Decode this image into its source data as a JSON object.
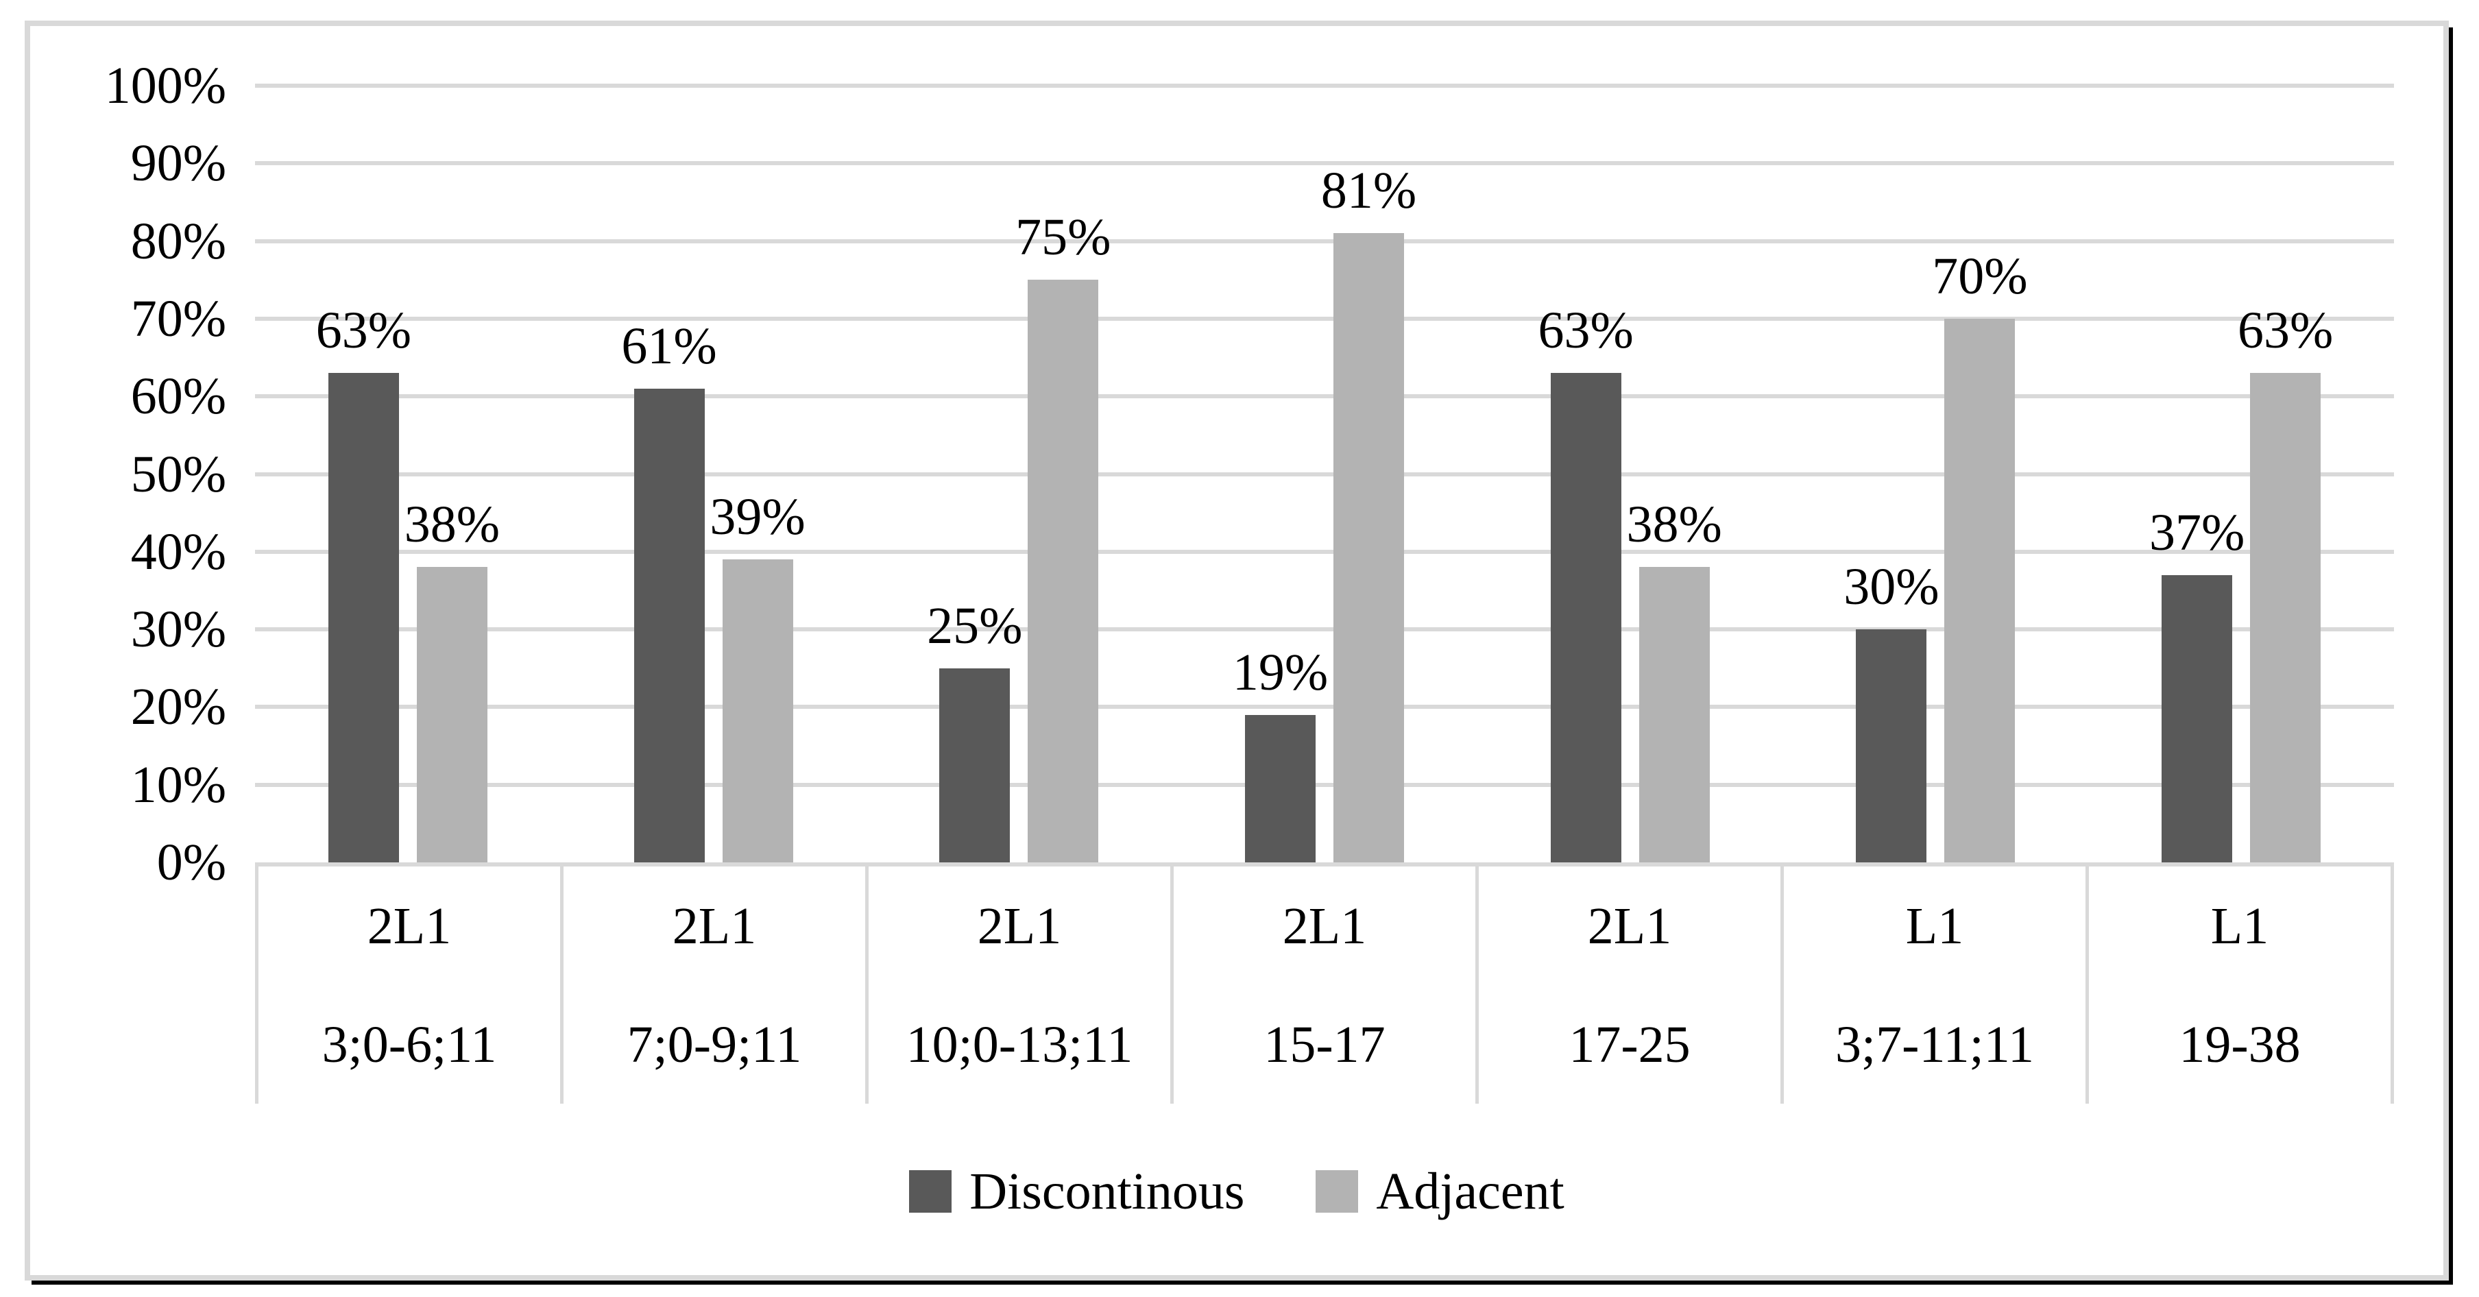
{
  "figure": {
    "background": "#ffffff",
    "box_border_color": "#d9d9d9",
    "shadow_color": "#000000",
    "text_color": "#000000"
  },
  "chart_data": {
    "type": "bar",
    "title": "",
    "xlabel": "",
    "ylabel": "",
    "categories": [
      {
        "group": "2L1",
        "age": "3;0-6;11"
      },
      {
        "group": "2L1",
        "age": "7;0-9;11"
      },
      {
        "group": "2L1",
        "age": "10;0-13;11"
      },
      {
        "group": "2L1",
        "age": "15-17"
      },
      {
        "group": "2L1",
        "age": "17-25"
      },
      {
        "group": "L1",
        "age": "3;7-11;11"
      },
      {
        "group": "L1",
        "age": "19-38"
      }
    ],
    "series": [
      {
        "name": "Discontinous",
        "color": "#595959",
        "values": [
          63,
          61,
          25,
          19,
          63,
          30,
          37
        ],
        "labels": [
          "63%",
          "61%",
          "25%",
          "19%",
          "63%",
          "30%",
          "37%"
        ]
      },
      {
        "name": "Adjacent",
        "color": "#b3b3b3",
        "values": [
          38,
          39,
          75,
          81,
          38,
          70,
          63
        ],
        "labels": [
          "38%",
          "39%",
          "75%",
          "81%",
          "38%",
          "70%",
          "63%"
        ]
      }
    ],
    "y_axis": {
      "min": 0,
      "max": 100,
      "step": 10,
      "tick_labels": [
        "0%",
        "10%",
        "20%",
        "30%",
        "40%",
        "50%",
        "60%",
        "70%",
        "80%",
        "90%",
        "100%"
      ],
      "grid": true,
      "gridline_color": "#d9d9d9"
    },
    "legend": {
      "position": "bottom",
      "items": [
        "Discontinous",
        "Adjacent"
      ]
    }
  }
}
